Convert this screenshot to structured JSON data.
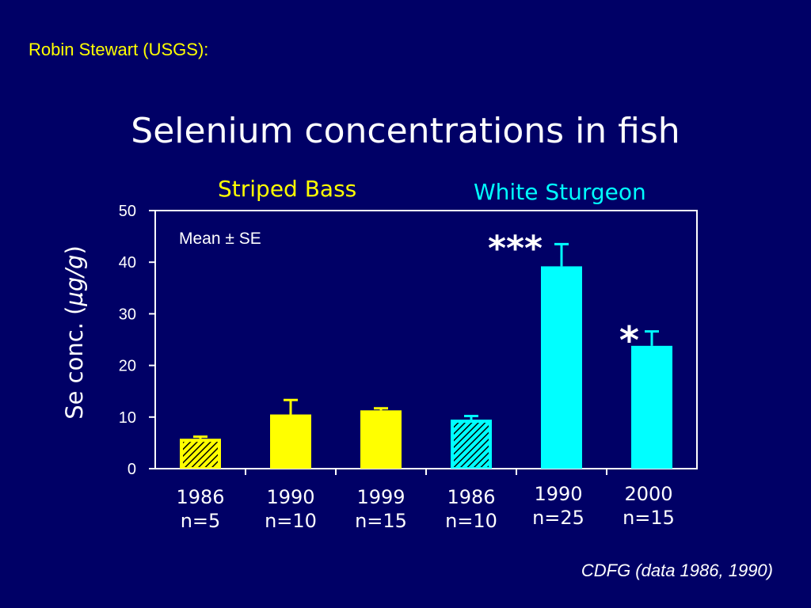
{
  "credit": "Robin Stewart (USGS):",
  "source": "CDFG (data 1986, 1990)",
  "colors": {
    "background": "#000066",
    "striped_bass": "#ffff00",
    "white_sturgeon": "#00ffff"
  },
  "chart_data": {
    "type": "bar",
    "title": "Selenium concentrations in fish",
    "ylabel_prefix": "Se conc. (",
    "ylabel_unit": "µg/g",
    "ylabel_suffix": ")",
    "ylim": [
      0,
      50
    ],
    "yticks": [
      "0",
      "10",
      "20",
      "30",
      "40",
      "50"
    ],
    "annotation": "Mean ± SE",
    "groups": [
      {
        "name": "Striped Bass",
        "color": "#ffff00"
      },
      {
        "name": "White Sturgeon",
        "color": "#00ffff"
      }
    ],
    "bars": [
      {
        "year": "1986",
        "n": "n=5",
        "value": 5.8,
        "se": 0.4,
        "group": "Striped Bass",
        "hatched": true,
        "significance": ""
      },
      {
        "year": "1990",
        "n": "n=10",
        "value": 10.5,
        "se": 2.8,
        "group": "Striped Bass",
        "hatched": false,
        "significance": ""
      },
      {
        "year": "1999",
        "n": "n=15",
        "value": 11.3,
        "se": 0.4,
        "group": "Striped Bass",
        "hatched": false,
        "significance": ""
      },
      {
        "year": "1986",
        "n": "n=10",
        "value": 9.5,
        "se": 0.7,
        "group": "White Sturgeon",
        "hatched": true,
        "significance": ""
      },
      {
        "year": "1990",
        "n": "n=25",
        "value": 39.2,
        "se": 4.3,
        "group": "White Sturgeon",
        "hatched": false,
        "significance": "***"
      },
      {
        "year": "2000",
        "n": "n=15",
        "value": 23.8,
        "se": 2.8,
        "group": "White Sturgeon",
        "hatched": false,
        "significance": "*"
      }
    ]
  }
}
